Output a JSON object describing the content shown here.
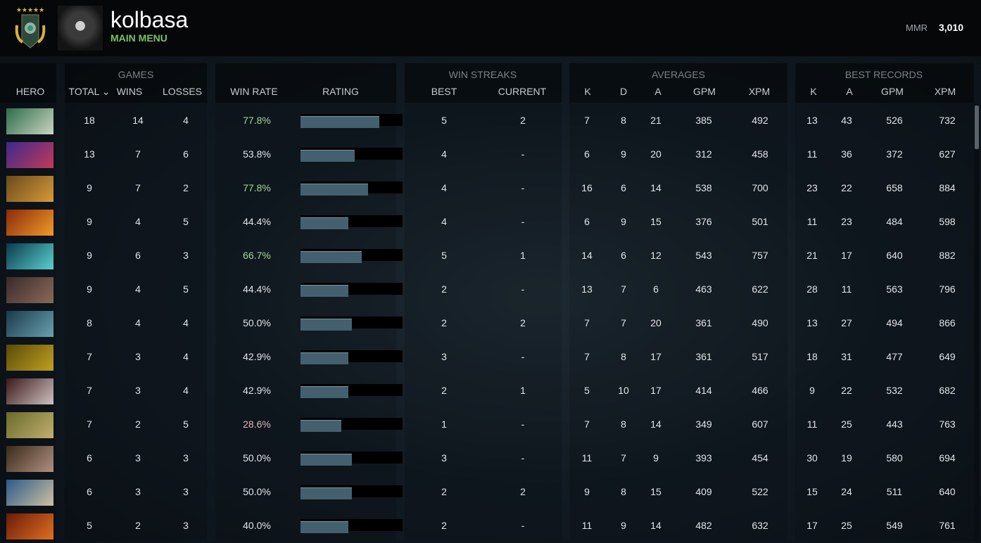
{
  "header": {
    "username": "kolbasa",
    "subtitle": "MAIN MENU",
    "mmr_label": "MMR",
    "mmr_value": "3,010"
  },
  "groups": {
    "games": "GAMES",
    "win_streaks": "WIN STREAKS",
    "averages": "AVERAGES",
    "best_records": "BEST RECORDS"
  },
  "columns": {
    "hero": "HERO",
    "total": "TOTAL ⌄",
    "wins": "WINS",
    "losses": "LOSSES",
    "win_rate": "WIN RATE",
    "rating": "RATING",
    "best": "BEST",
    "current": "CURRENT",
    "avg_k": "K",
    "avg_d": "D",
    "avg_a": "A",
    "avg_gpm": "GPM",
    "avg_xpm": "XPM",
    "best_k": "K",
    "best_a": "A",
    "best_gpm": "GPM",
    "best_xpm": "XPM"
  },
  "colors": {
    "winrate_high": "#a7d69a",
    "winrate_mid": "#e2e5e8",
    "winrate_low": "#e0b8b8",
    "bar_fill": "#44606f"
  },
  "rows": [
    {
      "hero_colors": [
        "#2e6b4a",
        "#c9d6c0"
      ],
      "total": "18",
      "wins": "14",
      "losses": "4",
      "win_rate": "77.8%",
      "rating": 0.77,
      "best": "5",
      "current": "2",
      "k": "7",
      "d": "8",
      "a": "21",
      "gpm": "385",
      "xpm": "492",
      "bk": "13",
      "ba": "43",
      "bgpm": "526",
      "bxpm": "732"
    },
    {
      "hero_colors": [
        "#3a2a8a",
        "#c23a5a"
      ],
      "total": "13",
      "wins": "7",
      "losses": "6",
      "win_rate": "53.8%",
      "rating": 0.53,
      "best": "4",
      "current": "-",
      "k": "6",
      "d": "9",
      "a": "20",
      "gpm": "312",
      "xpm": "458",
      "bk": "11",
      "ba": "36",
      "bgpm": "372",
      "bxpm": "627"
    },
    {
      "hero_colors": [
        "#6a4a1a",
        "#d79a3a"
      ],
      "total": "9",
      "wins": "7",
      "losses": "2",
      "win_rate": "77.8%",
      "rating": 0.66,
      "best": "4",
      "current": "-",
      "k": "16",
      "d": "6",
      "a": "14",
      "gpm": "538",
      "xpm": "700",
      "bk": "23",
      "ba": "22",
      "bgpm": "658",
      "bxpm": "884"
    },
    {
      "hero_colors": [
        "#8a2a0a",
        "#f09a2a"
      ],
      "total": "9",
      "wins": "4",
      "losses": "5",
      "win_rate": "44.4%",
      "rating": 0.47,
      "best": "4",
      "current": "-",
      "k": "6",
      "d": "9",
      "a": "15",
      "gpm": "376",
      "xpm": "501",
      "bk": "11",
      "ba": "23",
      "bgpm": "484",
      "bxpm": "598"
    },
    {
      "hero_colors": [
        "#0a3a4a",
        "#5ad0d0"
      ],
      "total": "9",
      "wins": "6",
      "losses": "3",
      "win_rate": "66.7%",
      "rating": 0.6,
      "best": "5",
      "current": "1",
      "k": "14",
      "d": "6",
      "a": "12",
      "gpm": "543",
      "xpm": "757",
      "bk": "21",
      "ba": "17",
      "bgpm": "640",
      "bxpm": "882"
    },
    {
      "hero_colors": [
        "#3a2a2a",
        "#8a6a5a"
      ],
      "total": "9",
      "wins": "4",
      "losses": "5",
      "win_rate": "44.4%",
      "rating": 0.47,
      "best": "2",
      "current": "-",
      "k": "13",
      "d": "7",
      "a": "6",
      "gpm": "463",
      "xpm": "622",
      "bk": "28",
      "ba": "11",
      "bgpm": "563",
      "bxpm": "796"
    },
    {
      "hero_colors": [
        "#1a3a4a",
        "#6aa0b0"
      ],
      "total": "8",
      "wins": "4",
      "losses": "4",
      "win_rate": "50.0%",
      "rating": 0.5,
      "best": "2",
      "current": "2",
      "k": "7",
      "d": "7",
      "a": "20",
      "gpm": "361",
      "xpm": "490",
      "bk": "13",
      "ba": "27",
      "bgpm": "494",
      "bxpm": "866"
    },
    {
      "hero_colors": [
        "#5a4a0a",
        "#c0a020"
      ],
      "total": "7",
      "wins": "3",
      "losses": "4",
      "win_rate": "42.9%",
      "rating": 0.47,
      "best": "3",
      "current": "-",
      "k": "7",
      "d": "8",
      "a": "17",
      "gpm": "361",
      "xpm": "517",
      "bk": "18",
      "ba": "31",
      "bgpm": "477",
      "bxpm": "649"
    },
    {
      "hero_colors": [
        "#3a1a1a",
        "#d0c0c0"
      ],
      "total": "7",
      "wins": "3",
      "losses": "4",
      "win_rate": "42.9%",
      "rating": 0.47,
      "best": "2",
      "current": "1",
      "k": "5",
      "d": "10",
      "a": "17",
      "gpm": "414",
      "xpm": "466",
      "bk": "9",
      "ba": "22",
      "bgpm": "532",
      "bxpm": "682"
    },
    {
      "hero_colors": [
        "#6a6a2a",
        "#c0b070"
      ],
      "total": "7",
      "wins": "2",
      "losses": "5",
      "win_rate": "28.6%",
      "rating": 0.4,
      "best": "1",
      "current": "-",
      "k": "7",
      "d": "8",
      "a": "14",
      "gpm": "349",
      "xpm": "607",
      "bk": "11",
      "ba": "25",
      "bgpm": "443",
      "bxpm": "763"
    },
    {
      "hero_colors": [
        "#3a2a1a",
        "#b09080"
      ],
      "total": "6",
      "wins": "3",
      "losses": "3",
      "win_rate": "50.0%",
      "rating": 0.5,
      "best": "3",
      "current": "-",
      "k": "11",
      "d": "7",
      "a": "9",
      "gpm": "393",
      "xpm": "454",
      "bk": "30",
      "ba": "19",
      "bgpm": "580",
      "bxpm": "694"
    },
    {
      "hero_colors": [
        "#2a5a8a",
        "#d0c0a0"
      ],
      "total": "6",
      "wins": "3",
      "losses": "3",
      "win_rate": "50.0%",
      "rating": 0.5,
      "best": "2",
      "current": "2",
      "k": "9",
      "d": "8",
      "a": "15",
      "gpm": "409",
      "xpm": "522",
      "bk": "15",
      "ba": "24",
      "bgpm": "511",
      "bxpm": "640"
    },
    {
      "hero_colors": [
        "#6a1a0a",
        "#e07020"
      ],
      "total": "5",
      "wins": "2",
      "losses": "3",
      "win_rate": "40.0%",
      "rating": 0.47,
      "best": "2",
      "current": "-",
      "k": "11",
      "d": "9",
      "a": "14",
      "gpm": "482",
      "xpm": "632",
      "bk": "17",
      "ba": "25",
      "bgpm": "549",
      "bxpm": "761"
    }
  ]
}
